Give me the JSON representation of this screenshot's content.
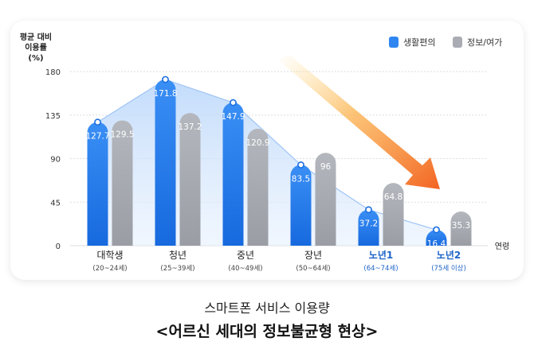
{
  "chart_data": {
    "type": "bar",
    "ylabel_lines": [
      "평균 대비",
      "이용률",
      "(%)"
    ],
    "xlabel": "연령",
    "ylim": [
      0,
      180
    ],
    "yticks": [
      0,
      45,
      90,
      135,
      180
    ],
    "grid": true,
    "legend_position": "top-right",
    "categories": [
      {
        "name": "대학생",
        "range": "(20~24세)",
        "highlight": false
      },
      {
        "name": "청년",
        "range": "(25~39세)",
        "highlight": false
      },
      {
        "name": "중년",
        "range": "(40~49세)",
        "highlight": false
      },
      {
        "name": "장년",
        "range": "(50~64세)",
        "highlight": false
      },
      {
        "name": "노년1",
        "range": "(64~74세)",
        "highlight": true
      },
      {
        "name": "노년2",
        "range": "(75세 이상)",
        "highlight": true
      }
    ],
    "series": [
      {
        "name": "생활편의",
        "color": "#2f86f0",
        "values": [
          127.7,
          171.8,
          147.9,
          83.5,
          37.2,
          16.4
        ]
      },
      {
        "name": "정보/여가",
        "color": "#a9acb3",
        "values": [
          129.5,
          137.2,
          120.9,
          96,
          64.8,
          35.3
        ]
      }
    ],
    "value_labels": [
      [
        "127.7",
        "171.8",
        "147.9",
        "83.5",
        "37.2",
        "16.4"
      ],
      [
        "129.5",
        "137.2",
        "120.9",
        "96",
        "64.8",
        "35.3"
      ]
    ],
    "trend_area_series": "생활편의",
    "arrow_color_start": "#ffd36a",
    "arrow_color_end": "#f26422",
    "highlight_color": "#1e64c8"
  },
  "caption": {
    "subtitle": "스마트폰 서비스 이용량",
    "title": "<어르신 세대의 정보불균형 현상>"
  }
}
